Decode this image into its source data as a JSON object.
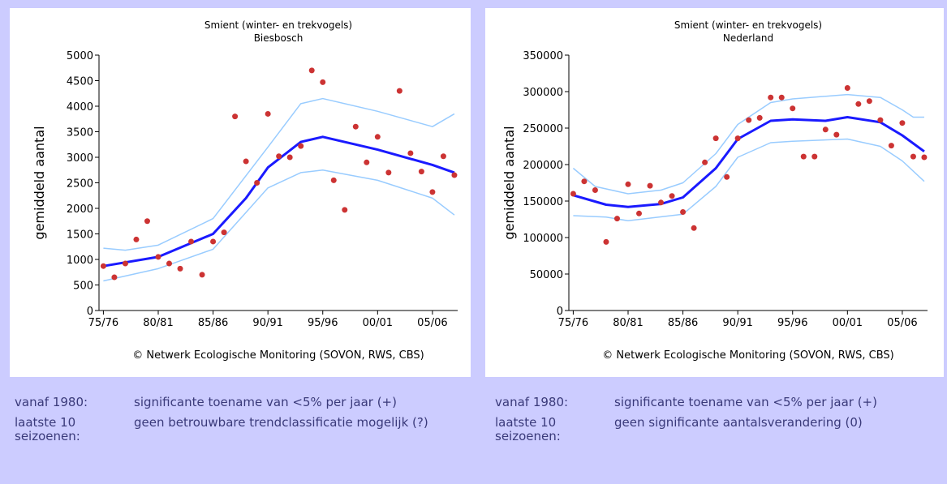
{
  "chart_data": [
    {
      "type": "scatter",
      "title": "Smient (winter- en trekvogels)",
      "subtitle": "Biesbosch",
      "y_label": "gemiddeld aantal",
      "source": "© Netwerk Ecologische Monitoring (SOVON, RWS, CBS)",
      "xlim": [
        1974.6,
        2007.3
      ],
      "xticks": [
        {
          "value": 1975,
          "label": "75/76"
        },
        {
          "value": 1980,
          "label": "80/81"
        },
        {
          "value": 1985,
          "label": "85/86"
        },
        {
          "value": 1990,
          "label": "90/91"
        },
        {
          "value": 1995,
          "label": "95/96"
        },
        {
          "value": 2000,
          "label": "00/01"
        },
        {
          "value": 2005,
          "label": "05/06"
        }
      ],
      "ylim": [
        0,
        5000
      ],
      "yticks": [
        0,
        500,
        1000,
        1500,
        2000,
        2500,
        3000,
        3500,
        4000,
        4500,
        5000
      ],
      "series": [
        {
          "mode": "line",
          "color": "#99ccff",
          "width": 1.5,
          "x": [
            1975,
            1977,
            1980,
            1985,
            1990,
            1993,
            1995,
            2000,
            2005,
            2007
          ],
          "values": [
            1220,
            1180,
            1280,
            1800,
            3200,
            4050,
            4150,
            3900,
            3600,
            3850
          ]
        },
        {
          "mode": "line",
          "color": "#99ccff",
          "width": 1.5,
          "x": [
            1975,
            1980,
            1985,
            1990,
            1993,
            1995,
            2000,
            2005,
            2007
          ],
          "values": [
            580,
            820,
            1200,
            2400,
            2700,
            2750,
            2550,
            2200,
            1870
          ]
        },
        {
          "mode": "line",
          "color": "#1a1aff",
          "width": 3,
          "x": [
            1975,
            1980,
            1985,
            1988,
            1990,
            1993,
            1995,
            2000,
            2005,
            2007
          ],
          "values": [
            870,
            1050,
            1500,
            2200,
            2800,
            3300,
            3400,
            3150,
            2850,
            2700
          ]
        },
        {
          "mode": "markers",
          "color": "#cc3333",
          "x": [
            1975,
            1976,
            1977,
            1978,
            1979,
            1980,
            1981,
            1982,
            1983,
            1984,
            1985,
            1986,
            1987,
            1988,
            1989,
            1990,
            1991,
            1992,
            1993,
            1994,
            1995,
            1996,
            1997,
            1998,
            1999,
            2000,
            2001,
            2002,
            2003,
            2004,
            2005,
            2006,
            2007
          ],
          "values": [
            870,
            650,
            920,
            1390,
            1750,
            1050,
            920,
            820,
            1350,
            700,
            1350,
            1530,
            3800,
            2920,
            2500,
            3850,
            3020,
            3000,
            3220,
            4700,
            4470,
            2550,
            1970,
            3600,
            2900,
            3400,
            2700,
            4300,
            3080,
            2720,
            2320,
            3020,
            2650
          ]
        }
      ]
    },
    {
      "type": "scatter",
      "title": "Smient (winter- en trekvogels)",
      "subtitle": "Nederland",
      "y_label": "gemiddeld aantal",
      "source": "© Netwerk Ecologische Monitoring (SOVON, RWS, CBS)",
      "xlim": [
        1974.6,
        2007.3
      ],
      "xticks": [
        {
          "value": 1975,
          "label": "75/76"
        },
        {
          "value": 1980,
          "label": "80/81"
        },
        {
          "value": 1985,
          "label": "85/86"
        },
        {
          "value": 1990,
          "label": "90/91"
        },
        {
          "value": 1995,
          "label": "95/96"
        },
        {
          "value": 2000,
          "label": "00/01"
        },
        {
          "value": 2005,
          "label": "05/06"
        }
      ],
      "ylim": [
        0,
        350000
      ],
      "yticks": [
        0,
        50000,
        100000,
        150000,
        200000,
        250000,
        300000,
        350000
      ],
      "series": [
        {
          "mode": "line",
          "color": "#99ccff",
          "width": 1.5,
          "x": [
            1975,
            1977,
            1980,
            1983,
            1985,
            1988,
            1990,
            1993,
            1995,
            2000,
            2003,
            2005,
            2006,
            2007
          ],
          "values": [
            195000,
            170000,
            160000,
            165000,
            175000,
            215000,
            255000,
            285000,
            290000,
            296000,
            292000,
            275000,
            265000,
            265000
          ]
        },
        {
          "mode": "line",
          "color": "#99ccff",
          "width": 1.5,
          "x": [
            1975,
            1978,
            1980,
            1985,
            1988,
            1990,
            1993,
            1995,
            2000,
            2003,
            2005,
            2007
          ],
          "values": [
            130000,
            128000,
            123000,
            132000,
            170000,
            210000,
            230000,
            232000,
            235000,
            225000,
            205000,
            177000
          ]
        },
        {
          "mode": "line",
          "color": "#1a1aff",
          "width": 3,
          "x": [
            1975,
            1978,
            1980,
            1983,
            1985,
            1988,
            1990,
            1993,
            1995,
            1998,
            2000,
            2003,
            2005,
            2007
          ],
          "values": [
            158000,
            145000,
            142000,
            146000,
            155000,
            195000,
            235000,
            260000,
            262000,
            260000,
            265000,
            258000,
            240000,
            218000
          ]
        },
        {
          "mode": "markers",
          "color": "#cc3333",
          "x": [
            1975,
            1976,
            1977,
            1978,
            1979,
            1980,
            1981,
            1982,
            1983,
            1984,
            1985,
            1986,
            1987,
            1988,
            1989,
            1990,
            1991,
            1992,
            1993,
            1994,
            1995,
            1996,
            1997,
            1998,
            1999,
            2000,
            2001,
            2002,
            2003,
            2004,
            2005,
            2006,
            2007
          ],
          "values": [
            160000,
            177000,
            165000,
            94000,
            126000,
            173000,
            133000,
            171000,
            148000,
            157000,
            135000,
            113000,
            203000,
            236000,
            183000,
            236000,
            261000,
            264000,
            292000,
            292000,
            277000,
            211000,
            211000,
            248000,
            241000,
            305000,
            283000,
            287000,
            261000,
            226000,
            257000,
            211000,
            210000
          ]
        }
      ]
    }
  ],
  "trends": [
    {
      "rows": [
        {
          "label": "vanaf 1980:",
          "text": "significante toename van <5% per jaar (+)"
        },
        {
          "label": "laatste 10 seizoenen:",
          "text": "geen betrouwbare trendclassificatie mogelijk (?)"
        }
      ]
    },
    {
      "rows": [
        {
          "label": "vanaf 1980:",
          "text": "significante toename van <5% per jaar (+)"
        },
        {
          "label": "laatste 10 seizoenen:",
          "text": "geen significante aantalsverandering (0)"
        }
      ]
    }
  ]
}
